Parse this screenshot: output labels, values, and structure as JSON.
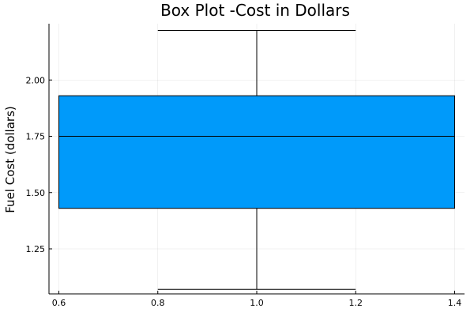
{
  "chart_data": {
    "type": "box",
    "title": "Box Plot -Cost in Dollars",
    "xlabel": "",
    "ylabel": "Fuel Cost (dollars)",
    "xlim": [
      0.58,
      1.42
    ],
    "ylim": [
      1.05,
      2.25
    ],
    "xticks": [
      0.6,
      0.8,
      1.0,
      1.2,
      1.4
    ],
    "xtick_labels": [
      "0.6",
      "0.8",
      "1.0",
      "1.2",
      "1.4"
    ],
    "yticks": [
      1.25,
      1.5,
      1.75,
      2.0
    ],
    "ytick_labels": [
      "1.25",
      "1.50",
      "1.75",
      "2.00"
    ],
    "grid": true,
    "legend": "none",
    "box": {
      "x": 1.0,
      "box_x_range": [
        0.6,
        1.4
      ],
      "whisker_cap_x_range": [
        0.8,
        1.2
      ],
      "min": 1.07,
      "q1": 1.43,
      "median": 1.75,
      "q3": 1.93,
      "max": 2.22,
      "color": "#009AFA"
    }
  }
}
